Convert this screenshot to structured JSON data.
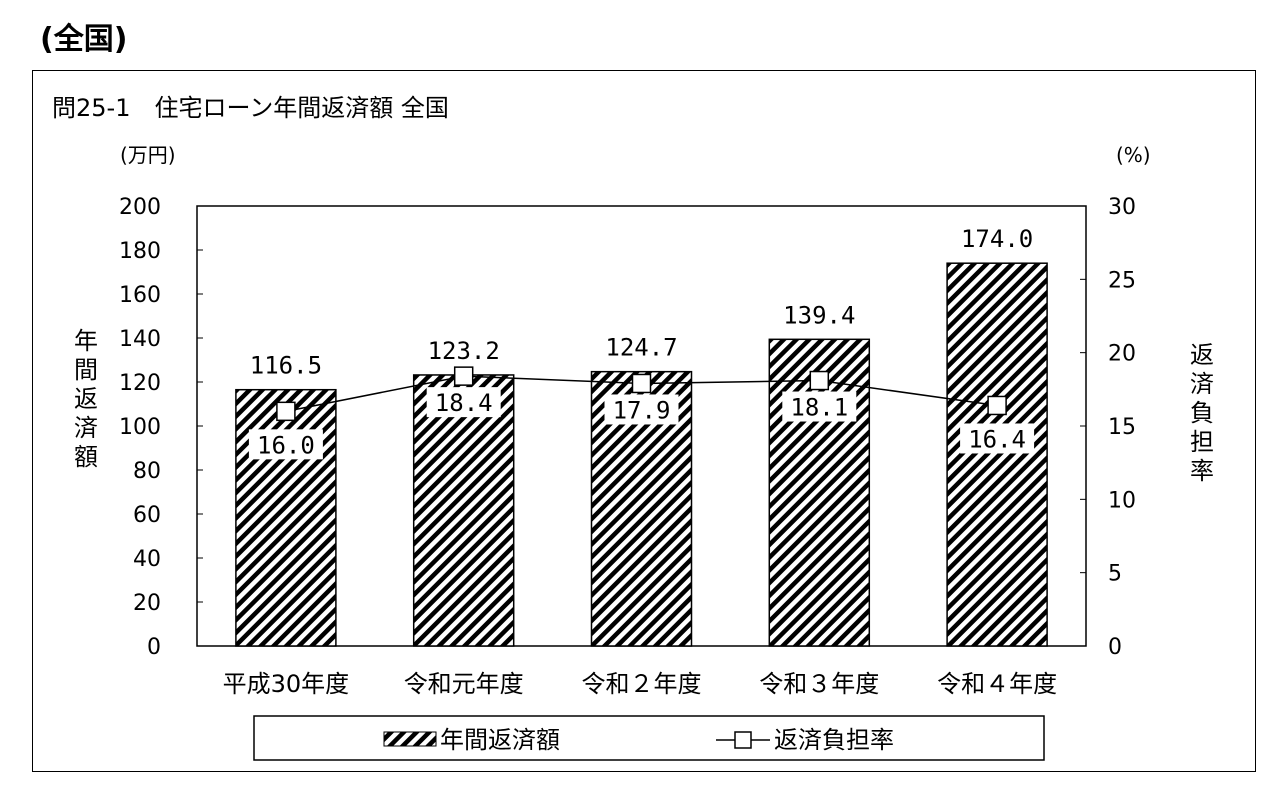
{
  "heading": "(全国)",
  "chart_data": {
    "type": "bar+line",
    "title": "問25-1　住宅ローン年間返済額 全国",
    "left_unit": "(万円)",
    "right_unit": "(%)",
    "ylabel": "年間返済額",
    "y2label": "返済負担率",
    "categories": [
      "平成30年度",
      "令和元年度",
      "令和２年度",
      "令和３年度",
      "令和４年度"
    ],
    "ylim": [
      0,
      200
    ],
    "y_ticks": [
      0,
      20,
      40,
      60,
      80,
      100,
      120,
      140,
      160,
      180,
      200
    ],
    "y2lim": [
      0,
      30
    ],
    "y2_ticks": [
      0,
      5,
      10,
      15,
      20,
      25,
      30
    ],
    "series": [
      {
        "name": "年間返済額",
        "type": "bar",
        "axis": "left",
        "values": [
          116.5,
          123.2,
          124.7,
          139.4,
          174.0
        ],
        "labels": [
          "116.5",
          "123.2",
          "124.7",
          "139.4",
          "174.0"
        ]
      },
      {
        "name": "返済負担率",
        "type": "line",
        "axis": "right",
        "values": [
          16.0,
          18.4,
          17.9,
          18.1,
          16.4
        ],
        "labels": [
          "16.0",
          "18.4",
          "17.9",
          "18.1",
          "16.4"
        ]
      }
    ],
    "legend": {
      "position": "bottom",
      "bar_label": "年間返済額",
      "line_label": "返済負担率"
    },
    "grid": false
  }
}
